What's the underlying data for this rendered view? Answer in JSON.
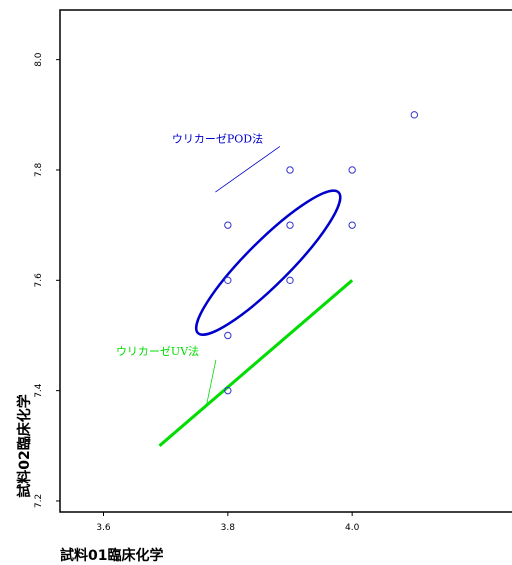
{
  "chart_data": {
    "type": "scatter",
    "title": "",
    "xlabel": "試料01臨床化学",
    "ylabel": "試料02臨床化学",
    "xlim": [
      3.53,
      4.27
    ],
    "ylim": [
      7.18,
      8.09
    ],
    "xticks": [
      {
        "value": 3.6,
        "label": "3.6"
      },
      {
        "value": 3.8,
        "label": "3.8"
      },
      {
        "value": 4.0,
        "label": "4.0"
      }
    ],
    "yticks": [
      {
        "value": 7.2,
        "label": "7.2"
      },
      {
        "value": 7.4,
        "label": "7.4"
      },
      {
        "value": 7.6,
        "label": "7.6"
      },
      {
        "value": 7.8,
        "label": "7.8"
      },
      {
        "value": 8.0,
        "label": "8.0"
      }
    ],
    "points": [
      {
        "x": 3.8,
        "y": 7.4
      },
      {
        "x": 3.8,
        "y": 7.5
      },
      {
        "x": 3.8,
        "y": 7.6
      },
      {
        "x": 3.8,
        "y": 7.7
      },
      {
        "x": 3.9,
        "y": 7.6
      },
      {
        "x": 3.9,
        "y": 7.7
      },
      {
        "x": 3.9,
        "y": 7.8
      },
      {
        "x": 4.0,
        "y": 7.7
      },
      {
        "x": 4.0,
        "y": 7.8
      },
      {
        "x": 4.1,
        "y": 7.9
      }
    ],
    "ellipse": {
      "label": "ウリカーゼPOD法",
      "color": "#0000cc",
      "center": {
        "x": 3.865,
        "y": 7.632
      },
      "angle_deg": -45,
      "radius_major": 0.16,
      "radius_minor": 0.035,
      "label_anchor": {
        "x": 3.71,
        "y": 7.85
      },
      "pointer_to": {
        "x": 3.78,
        "y": 7.76
      }
    },
    "line": {
      "label": "ウリカーゼUV法",
      "color": "#00dd00",
      "from": {
        "x": 3.69,
        "y": 7.3
      },
      "to": {
        "x": 4.0,
        "y": 7.6
      },
      "label_anchor": {
        "x": 3.62,
        "y": 7.465
      },
      "pointer_to": {
        "x": 3.765,
        "y": 7.37
      }
    },
    "marker_color": "#3333cc",
    "grid": false
  }
}
